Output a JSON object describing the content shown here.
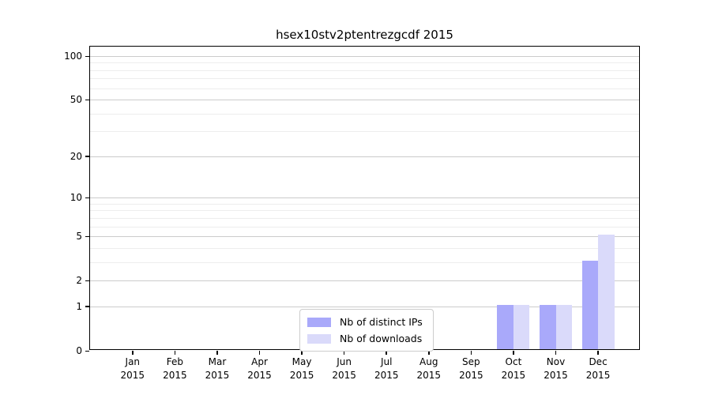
{
  "chart_data": {
    "type": "bar",
    "title": "hsex10stv2ptentrezgcdf 2015",
    "categories": [
      "Jan",
      "Feb",
      "Mar",
      "Apr",
      "May",
      "Jun",
      "Jul",
      "Aug",
      "Sep",
      "Oct",
      "Nov",
      "Dec"
    ],
    "year": "2015",
    "series": [
      {
        "name": "Nb of distinct IPs",
        "color": "#a9a9fa",
        "values": [
          0,
          0,
          0,
          0,
          0,
          0,
          0,
          0,
          0,
          1,
          1,
          3
        ]
      },
      {
        "name": "Nb of downloads",
        "color": "#dadafa",
        "values": [
          0,
          0,
          0,
          0,
          0,
          0,
          0,
          0,
          0,
          1,
          1,
          5
        ]
      }
    ],
    "xlabel": "",
    "ylabel": "",
    "y_ticks": [
      0,
      1,
      2,
      5,
      10,
      20,
      50,
      100
    ],
    "y_minor_gridlines": [
      3,
      4,
      6,
      7,
      8,
      9,
      30,
      40,
      60,
      70,
      80,
      90
    ],
    "scale": "log10(1+y)",
    "ylim": [
      0,
      100
    ],
    "grid": true,
    "legend_position": "bottom-center"
  }
}
